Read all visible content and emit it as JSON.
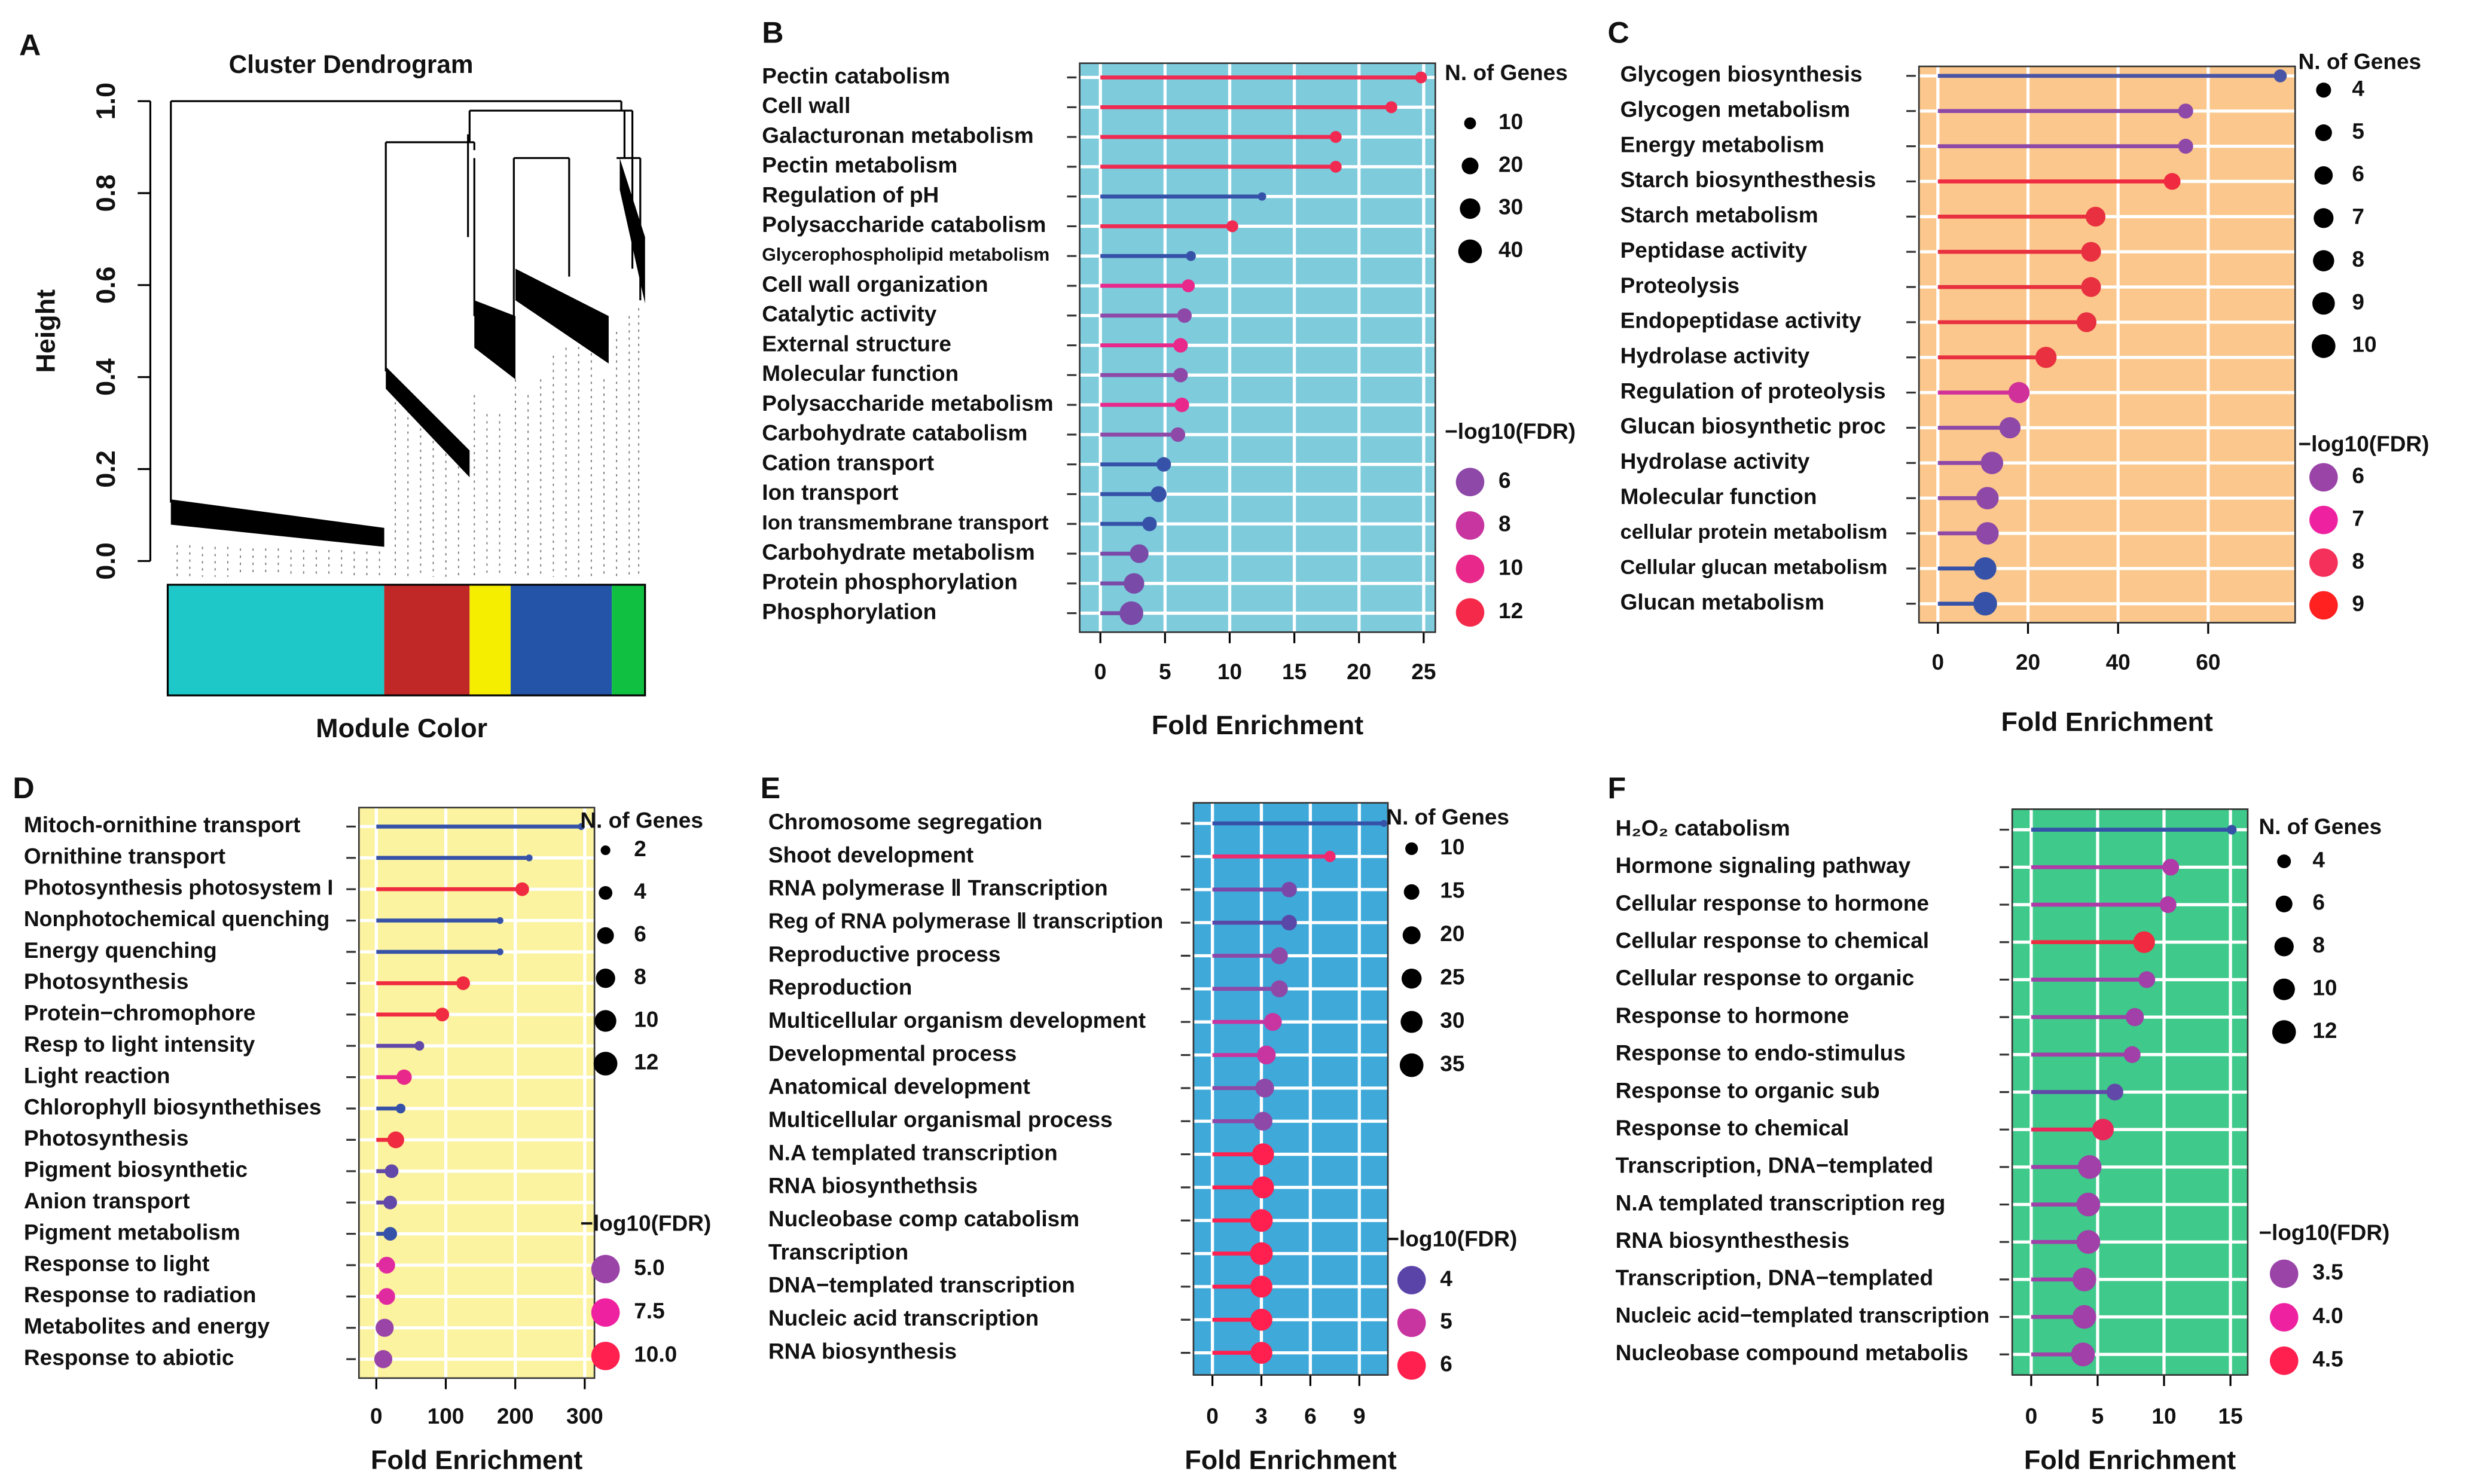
{
  "chart_data": [
    {
      "type": "dendrogram",
      "label": "A",
      "title": "Cluster Dendrogram",
      "ylabel": "Height",
      "xlabel": "Module Color",
      "ylim": [
        0,
        1
      ],
      "yticks": [
        {
          "value": 0,
          "label": "0.0"
        },
        0.2,
        0.4,
        0.6,
        0.8,
        {
          "value": 1,
          "label": "1.0"
        }
      ],
      "module_colors": [
        "#1ec8c8",
        "#c02828",
        "#f5ee00",
        "#2454a8",
        "#10c040"
      ]
    },
    {
      "type": "lollipop",
      "label": "B",
      "background": "#7ecbdc",
      "xlabel": "Fold Enrichment",
      "categories": [
        "Pectin catabolism",
        "Cell wall",
        "Galacturonan metabolism",
        "Pectin metabolism",
        "Regulation of pH",
        "Polysaccharide catabolism",
        "Glycerophospholipid metabolism",
        "Cell wall organization",
        "Catalytic activity",
        "External structure",
        "Molecular function",
        "Polysaccharide metabolism",
        "Carbohydrate catabolism",
        "Cation transport",
        "Ion transport",
        "Ion transmembrane transport",
        "Carbohydrate metabolism",
        "Protein phosphorylation",
        "Phosphorylation"
      ],
      "values": [
        24.8,
        22.5,
        18.2,
        18.2,
        12.5,
        10.2,
        7,
        6.8,
        6.5,
        6.2,
        6.2,
        6.3,
        6,
        4.9,
        4.5,
        3.8,
        3,
        2.6,
        2.4
      ],
      "sizes": [
        10,
        10,
        10,
        10,
        5,
        10,
        7,
        12,
        15,
        15,
        15,
        15,
        15,
        15,
        18,
        15,
        25,
        30,
        40
      ],
      "colors": [
        "#f02a50",
        "#f02a50",
        "#f02a50",
        "#f02a50",
        "#3652a8",
        "#f02a50",
        "#3652a8",
        "#e8288a",
        "#8e48a8",
        "#e8288a",
        "#8e48a8",
        "#e8288a",
        "#8e48a8",
        "#3652a8",
        "#3652a8",
        "#3652a8",
        "#7a4aa8",
        "#7a4aa8",
        "#7a4aa8"
      ],
      "xlim": [
        -1.6,
        25.9
      ],
      "xticks": [
        0,
        5,
        10,
        15,
        20,
        25
      ],
      "size_legend": {
        "title": "N. of Genes",
        "values": [
          10,
          20,
          30,
          40
        ]
      },
      "color_legend": {
        "title": "−log10(FDR)",
        "values": [
          6,
          8,
          10,
          12
        ],
        "colors": [
          "#8e48a8",
          "#c835a0",
          "#e8288a",
          "#f52a4a"
        ]
      }
    },
    {
      "type": "lollipop",
      "label": "C",
      "background": "#fbc78c",
      "xlabel": "Fold Enrichment",
      "categories": [
        "Glycogen biosynthesis",
        "Glycogen metabolism",
        "Energy metabolism",
        "Starch biosynthesthesis",
        "Starch metabolism",
        "Peptidase activity",
        "Proteolysis",
        "Endopeptidase activity",
        "Hydrolase activity",
        "Regulation of proteolysis",
        "Glucan biosynthetic proc",
        "Hydrolase activity",
        "Molecular function",
        "cellular protein metabolism",
        "Cellular glucan metabolism",
        "Glucan metabolism"
      ],
      "values": [
        76,
        55,
        55,
        52,
        35,
        34,
        34,
        33,
        24,
        18,
        16,
        12,
        11,
        11,
        10.5,
        10.5
      ],
      "sizes": [
        3,
        4,
        4,
        5,
        7,
        7,
        7,
        7,
        8,
        8,
        8,
        9,
        9,
        9,
        9,
        10
      ],
      "colors": [
        "#4a55a5",
        "#8e48a8",
        "#8e48a8",
        "#f02a40",
        "#e83040",
        "#e83040",
        "#e83040",
        "#e83040",
        "#e83040",
        "#d0309a",
        "#8e48a8",
        "#8e48a8",
        "#8e48a8",
        "#8e48a8",
        "#3652a8",
        "#3652a8"
      ],
      "xlim": [
        -4.2,
        79.3
      ],
      "xticks": [
        0,
        20,
        40,
        60
      ],
      "size_legend": {
        "title": "N. of Genes",
        "values": [
          4,
          5,
          6,
          7,
          8,
          9,
          10
        ]
      },
      "color_legend": {
        "title": "−log10(FDR)",
        "values": [
          6,
          7,
          8,
          9
        ],
        "colors": [
          "#9a44a8",
          "#ee22a0",
          "#f5305a",
          "#ff2020"
        ]
      }
    },
    {
      "type": "lollipop",
      "label": "D",
      "background": "#fbf3a0",
      "xlabel": "Fold Enrichment",
      "categories": [
        "Mitoch-ornithine transport",
        "Ornithine transport",
        "Photosynthesis photosystem I",
        "Nonphotochemical quenching",
        "Energy quenching",
        "Photosynthesis",
        "Protein−chromophore",
        "Resp to light intensity",
        "Light reaction",
        "Chlorophyll biosynthethises",
        "Photosynthesis",
        "Pigment biosynthetic",
        "Anion  transport",
        "Pigment metabolism",
        "Response to light",
        "Response to radiation",
        "Metabolites and energy",
        "Response to abiotic"
      ],
      "values": [
        295,
        220,
        210,
        178,
        178,
        125,
        95,
        62,
        40,
        35,
        28,
        22,
        20,
        20,
        15,
        15,
        12,
        10
      ],
      "sizes": [
        1,
        1,
        4,
        1,
        1,
        4,
        4,
        2,
        5,
        2,
        6,
        4,
        4,
        4,
        6,
        6,
        7,
        7
      ],
      "colors": [
        "#3652a8",
        "#3652a8",
        "#f02a40",
        "#3652a8",
        "#3652a8",
        "#f02a40",
        "#f02a40",
        "#6248a8",
        "#e8288a",
        "#3652a8",
        "#f02a40",
        "#6248a8",
        "#6248a8",
        "#3652a8",
        "#e02aa0",
        "#e02aa0",
        "#9a44a8",
        "#9a44a8"
      ],
      "xlim": [
        -25,
        314
      ],
      "xticks": [
        0,
        100,
        200,
        300
      ],
      "size_legend": {
        "title": "N. of Genes",
        "values": [
          2,
          4,
          6,
          8,
          10,
          12
        ]
      },
      "color_legend": {
        "title": "−log10(FDR)",
        "values": [
          {
            "value": 5,
            "label": "5.0"
          },
          7.5,
          {
            "value": 10,
            "label": "10.0"
          }
        ],
        "colors": [
          "#9a44a8",
          "#ee22a0",
          "#ff2050"
        ]
      }
    },
    {
      "type": "lollipop",
      "label": "E",
      "background": "#3fa9d9",
      "xlabel": "Fold Enrichment",
      "categories": [
        "Chromosome segregation",
        "Shoot development",
        "RNA polymerase Ⅱ Transcription",
        "Reg of RNA polymerase Ⅱ transcription",
        "Reproductive process",
        "Reproduction",
        "Multicellular organism development",
        "Developmental process",
        "Anatomical development",
        "Multicellular organismal process",
        "N.A templated transcription",
        "RNA biosynthethsis",
        "Nucleobase comp catabolism",
        "Transcription",
        "DNA−templated transcription",
        "Nucleic acid transcription",
        "RNA biosynthesis"
      ],
      "values": [
        10.5,
        7.2,
        4.7,
        4.7,
        4.1,
        4.1,
        3.7,
        3.3,
        3.2,
        3.1,
        3.1,
        3.1,
        3,
        3,
        3,
        3,
        3
      ],
      "sizes": [
        3,
        8,
        15,
        15,
        18,
        18,
        20,
        22,
        22,
        22,
        30,
        30,
        32,
        32,
        30,
        30,
        30
      ],
      "colors": [
        "#3652a8",
        "#f0286e",
        "#7a48a8",
        "#5a48a8",
        "#8e48a8",
        "#8e48a8",
        "#c835a0",
        "#c835a0",
        "#8e48a8",
        "#8e48a8",
        "#ff2050",
        "#ff2050",
        "#ff2050",
        "#ff2050",
        "#ff2050",
        "#ff2050",
        "#ff2050"
      ],
      "xlim": [
        -1.16,
        10.75
      ],
      "xticks": [
        0,
        3,
        6,
        9
      ],
      "size_legend": {
        "title": "N. of Genes",
        "values": [
          10,
          15,
          20,
          25,
          30,
          35
        ]
      },
      "color_legend": {
        "title": "−log10(FDR)",
        "values": [
          4,
          5,
          6
        ],
        "colors": [
          "#5a44a8",
          "#c835a0",
          "#ff2050"
        ]
      }
    },
    {
      "type": "lollipop",
      "label": "F",
      "background": "#3fc98a",
      "xlabel": "Fold Enrichment",
      "categories": [
        "H₂O₂ catabolism",
        "Hormone signaling pathway",
        "Cellular response to hormone",
        "Cellular response to chemical",
        "Cellular response to organic",
        "Response to hormone",
        "Response to endo-stimulus",
        "Response to organic sub",
        "Response to chemical",
        "Transcription, DNA−templated",
        "N.A templated transcription reg",
        "RNA biosynthesthesis",
        "Transcription, DNA−templated",
        "Nucleic acid−templated transcription",
        "Nucleobase compound metabolis"
      ],
      "values": [
        15.1,
        10.5,
        10.3,
        8.5,
        8.7,
        7.8,
        7.6,
        6.3,
        5.4,
        4.4,
        4.3,
        4.3,
        4,
        4,
        3.9
      ],
      "sizes": [
        2,
        6,
        6,
        10,
        6,
        7,
        6,
        6,
        10,
        12,
        12,
        12,
        12,
        12,
        12
      ],
      "colors": [
        "#3652a8",
        "#b03aa8",
        "#b03aa8",
        "#f02a40",
        "#a040a8",
        "#a040a8",
        "#a040a8",
        "#6248a8",
        "#e8285a",
        "#a040a8",
        "#a040a8",
        "#a040a8",
        "#a040a8",
        "#a040a8",
        "#a040a8"
      ],
      "xlim": [
        -1.43,
        16.3
      ],
      "xticks": [
        0,
        5,
        10,
        15
      ],
      "size_legend": {
        "title": "N. of Genes",
        "values": [
          4,
          6,
          8,
          10,
          12
        ]
      },
      "color_legend": {
        "title": "−log10(FDR)",
        "values": [
          3.5,
          {
            "value": 4,
            "label": "4.0"
          },
          4.5
        ],
        "colors": [
          "#9a44a8",
          "#ee22a0",
          "#ff2050"
        ]
      }
    }
  ]
}
